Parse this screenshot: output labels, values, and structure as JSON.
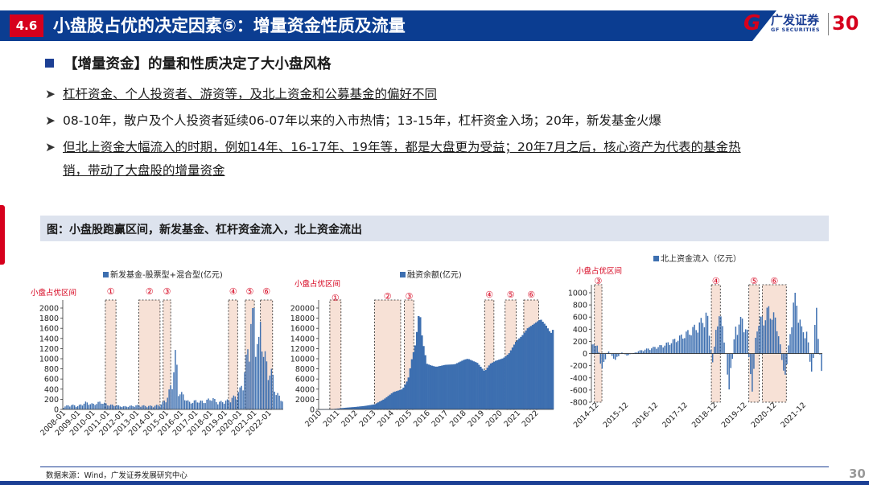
{
  "header": {
    "section": "4.6",
    "title": "小盘股占优的决定因素⑤：增量资金性质及流量"
  },
  "logo": {
    "cn": "广发证券",
    "en": "GF SECURITIES",
    "badge": "30"
  },
  "subheading": "【增量资金】的量和性质决定了大小盘风格",
  "bullets": [
    "杠杆资金、个人投资者、游资等，及北上资金和公募基金的偏好不同",
    "08-10年，散户及个人投资者延续06-07年以来的入市热情；13-15年，杠杆资金入场；20年，新发基金火爆",
    "但北上资金大幅流入的时期，例如14年、16-17年、19年等，都是大盘更为受益；20年7月之后，核心资产为代表的基金热",
    "销，带动了大盘股的增量资金"
  ],
  "figure_caption": "图：小盘股跑赢区间，新发基金、杠杆资金流入，北上资金流出",
  "source": "数据来源：Wind，广发证券发展研究中心",
  "page_number": "30",
  "colors": {
    "navy": "#0b3d91",
    "red": "#d6001c",
    "bar": "#3d6fb0",
    "box": "#f7e1d6"
  },
  "chart_data": [
    {
      "type": "bar",
      "title": "新发基金-股票型+混合型(亿元)",
      "legend": "新发基金-股票型+混合型(亿元)",
      "region_label": "小盘占优区间",
      "ylim": [
        0,
        2000
      ],
      "yticks": [
        0,
        200,
        400,
        600,
        800,
        1000,
        1200,
        1400,
        1600,
        1800,
        2000
      ],
      "xticks": [
        "2008-01",
        "2009-01",
        "2010-01",
        "2011-01",
        "2012-01",
        "2013-01",
        "2014-01",
        "2015-01",
        "2016-01",
        "2017-01",
        "2018-01",
        "2019-01",
        "2020-01",
        "2021-01",
        "2022-01"
      ],
      "x_range": [
        2008.0,
        2022.5
      ],
      "regions": [
        {
          "label": "①",
          "start": 2010.8,
          "end": 2011.5
        },
        {
          "label": "②",
          "start": 2013.0,
          "end": 2014.4
        },
        {
          "label": "③",
          "start": 2014.6,
          "end": 2015.1
        },
        {
          "label": "④",
          "start": 2018.9,
          "end": 2019.5
        },
        {
          "label": "⑤",
          "start": 2020.0,
          "end": 2020.6
        },
        {
          "label": "⑥",
          "start": 2021.0,
          "end": 2021.8
        }
      ],
      "anchors": [
        [
          2008,
          40
        ],
        [
          2008.5,
          80
        ],
        [
          2009,
          60
        ],
        [
          2009.5,
          120
        ],
        [
          2010,
          90
        ],
        [
          2010.5,
          130
        ],
        [
          2011,
          80
        ],
        [
          2011.5,
          70
        ],
        [
          2012,
          50
        ],
        [
          2012.5,
          60
        ],
        [
          2013,
          70
        ],
        [
          2013.5,
          60
        ],
        [
          2014,
          60
        ],
        [
          2014.5,
          90
        ],
        [
          2014.9,
          220
        ],
        [
          2015.2,
          500
        ],
        [
          2015.45,
          1000
        ],
        [
          2015.6,
          320
        ],
        [
          2015.9,
          250
        ],
        [
          2016.3,
          120
        ],
        [
          2016.8,
          150
        ],
        [
          2017.3,
          130
        ],
        [
          2017.8,
          200
        ],
        [
          2018.2,
          120
        ],
        [
          2018.8,
          150
        ],
        [
          2019.3,
          220
        ],
        [
          2019.7,
          350
        ],
        [
          2020.0,
          700
        ],
        [
          2020.2,
          1100
        ],
        [
          2020.4,
          1600
        ],
        [
          2020.55,
          1900
        ],
        [
          2020.7,
          1300
        ],
        [
          2020.9,
          1100
        ],
        [
          2021.05,
          1650
        ],
        [
          2021.2,
          1000
        ],
        [
          2021.5,
          700
        ],
        [
          2021.8,
          600
        ],
        [
          2022.0,
          300
        ],
        [
          2022.3,
          200
        ],
        [
          2022.5,
          150
        ]
      ]
    },
    {
      "type": "area",
      "title": "融资余额(亿元)",
      "legend": "融资余额(亿元)",
      "region_label": "小盘占优区间",
      "ylim": [
        0,
        20000
      ],
      "yticks": [
        0,
        2000,
        4000,
        6000,
        8000,
        10000,
        12000,
        14000,
        16000,
        18000,
        20000
      ],
      "xticks": [
        "2010",
        "2011",
        "2012",
        "2013",
        "2014",
        "2015",
        "2016",
        "2017",
        "2018",
        "2019",
        "2020",
        "2021",
        "2022"
      ],
      "x_range": [
        2010.0,
        2022.6
      ],
      "regions": [
        {
          "label": "①",
          "start": 2010.6,
          "end": 2011.2
        },
        {
          "label": "②",
          "start": 2013.0,
          "end": 2014.4
        },
        {
          "label": "③",
          "start": 2014.6,
          "end": 2015.1
        },
        {
          "label": "④",
          "start": 2018.9,
          "end": 2019.4
        },
        {
          "label": "⑤",
          "start": 2020.0,
          "end": 2020.6
        },
        {
          "label": "⑥",
          "start": 2021.0,
          "end": 2021.8
        }
      ],
      "anchors": [
        [
          2010.2,
          10
        ],
        [
          2010.8,
          80
        ],
        [
          2011.5,
          350
        ],
        [
          2012,
          500
        ],
        [
          2012.5,
          700
        ],
        [
          2013,
          1000
        ],
        [
          2013.5,
          2000
        ],
        [
          2014,
          3400
        ],
        [
          2014.5,
          4000
        ],
        [
          2014.8,
          6000
        ],
        [
          2015.0,
          10000
        ],
        [
          2015.2,
          13000
        ],
        [
          2015.4,
          20000
        ],
        [
          2015.55,
          14000
        ],
        [
          2015.8,
          9000
        ],
        [
          2016,
          8700
        ],
        [
          2016.3,
          8400
        ],
        [
          2016.8,
          8800
        ],
        [
          2017.3,
          8900
        ],
        [
          2017.8,
          9800
        ],
        [
          2018.0,
          10000
        ],
        [
          2018.5,
          9200
        ],
        [
          2018.9,
          7500
        ],
        [
          2019.2,
          9000
        ],
        [
          2019.5,
          9600
        ],
        [
          2019.9,
          10100
        ],
        [
          2020.2,
          11000
        ],
        [
          2020.6,
          13500
        ],
        [
          2020.9,
          14500
        ],
        [
          2021.2,
          16000
        ],
        [
          2021.6,
          17000
        ],
        [
          2021.9,
          17800
        ],
        [
          2022.2,
          16500
        ],
        [
          2022.45,
          15000
        ],
        [
          2022.6,
          16000
        ]
      ]
    },
    {
      "type": "bar",
      "title": "北上资金流入（亿元）",
      "legend": "北上资金流入（亿元）",
      "region_label": "小盘占优区间",
      "ylim": [
        -800,
        1000
      ],
      "yticks": [
        -800,
        -600,
        -400,
        -200,
        0,
        200,
        400,
        600,
        800,
        1000
      ],
      "xticks": [
        "2014-12",
        "2015-12",
        "2016-12",
        "2017-12",
        "2018-12",
        "2019-12",
        "2020-12",
        "2021-12"
      ],
      "x_range": [
        2014.8,
        2022.5
      ],
      "regions": [
        {
          "label": "③",
          "start": 2014.9,
          "end": 2015.15
        },
        {
          "label": "④",
          "start": 2018.8,
          "end": 2019.1
        },
        {
          "label": "⑤",
          "start": 2020.05,
          "end": 2020.4
        },
        {
          "label": "⑥",
          "start": 2020.5,
          "end": 2021.3
        }
      ],
      "anchors": [
        [
          2014.9,
          120
        ],
        [
          2015.0,
          150
        ],
        [
          2015.15,
          -260
        ],
        [
          2015.35,
          50
        ],
        [
          2015.6,
          -100
        ],
        [
          2015.8,
          20
        ],
        [
          2016.0,
          -30
        ],
        [
          2016.4,
          40
        ],
        [
          2016.8,
          80
        ],
        [
          2017.2,
          120
        ],
        [
          2017.6,
          200
        ],
        [
          2018.0,
          300
        ],
        [
          2018.4,
          420
        ],
        [
          2018.65,
          580
        ],
        [
          2018.85,
          -150
        ],
        [
          2019.0,
          600
        ],
        [
          2019.2,
          380
        ],
        [
          2019.4,
          -560
        ],
        [
          2019.6,
          380
        ],
        [
          2019.85,
          500
        ],
        [
          2020.0,
          300
        ],
        [
          2020.15,
          -700
        ],
        [
          2020.3,
          420
        ],
        [
          2020.5,
          500
        ],
        [
          2020.75,
          650
        ],
        [
          2020.9,
          520
        ],
        [
          2021.05,
          300
        ],
        [
          2021.25,
          -450
        ],
        [
          2021.4,
          230
        ],
        [
          2021.6,
          900
        ],
        [
          2021.8,
          350
        ],
        [
          2022.0,
          300
        ],
        [
          2022.15,
          -430
        ],
        [
          2022.3,
          730
        ],
        [
          2022.45,
          -220
        ]
      ]
    }
  ]
}
